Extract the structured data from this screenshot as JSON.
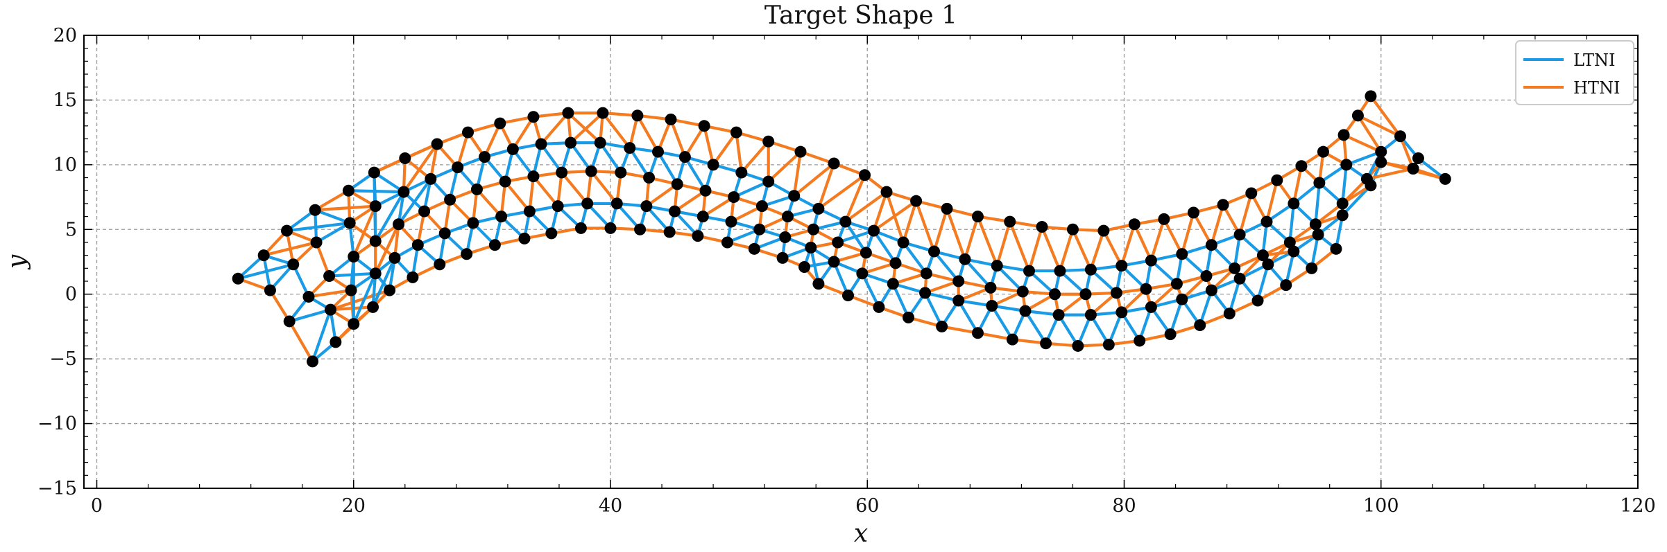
{
  "chart_data": {
    "type": "line",
    "title": "Target Shape 1",
    "xlabel": "x",
    "ylabel": "y",
    "xlim": [
      -1,
      120
    ],
    "ylim": [
      -15,
      20
    ],
    "xticks": [
      0,
      20,
      40,
      60,
      80,
      100,
      120
    ],
    "yticks": [
      -15,
      -10,
      -5,
      0,
      5,
      10,
      15,
      20
    ],
    "grid": true,
    "legend_position": "top-right",
    "colors": {
      "LTNI": "#1a9be6",
      "HTNI": "#f47b20",
      "node": "#000000"
    },
    "series": [
      {
        "name": "LTNI",
        "color": "#1a9be6"
      },
      {
        "name": "HTNI",
        "color": "#f47b20"
      }
    ],
    "rows": [
      {
        "name": "row-1",
        "points": [
          [
            11.0,
            1.2
          ],
          [
            13.5,
            0.3
          ],
          [
            15.0,
            -2.1
          ],
          [
            16.8,
            -5.2
          ]
        ]
      },
      {
        "name": "row-2",
        "points": [
          [
            13.0,
            3.0
          ],
          [
            15.3,
            2.3
          ],
          [
            16.5,
            -0.2
          ],
          [
            18.2,
            -1.2
          ],
          [
            18.6,
            -3.7
          ]
        ]
      },
      {
        "name": "row-3",
        "points": [
          [
            14.8,
            4.9
          ],
          [
            17.1,
            4.0
          ],
          [
            18.1,
            1.4
          ],
          [
            19.8,
            0.3
          ],
          [
            20.0,
            -2.3
          ],
          [
            21.5,
            -1.0
          ],
          [
            22.8,
            0.3
          ],
          [
            24.6,
            1.3
          ],
          [
            26.7,
            2.3
          ],
          [
            28.8,
            3.1
          ],
          [
            31.0,
            3.8
          ],
          [
            33.3,
            4.3
          ],
          [
            35.4,
            4.7
          ],
          [
            37.7,
            5.1
          ],
          [
            40.0,
            5.1
          ],
          [
            42.3,
            5.0
          ],
          [
            44.6,
            4.8
          ],
          [
            46.8,
            4.5
          ],
          [
            49.1,
            4.0
          ],
          [
            51.2,
            3.5
          ],
          [
            53.4,
            2.8
          ],
          [
            55.1,
            2.1
          ],
          [
            56.2,
            0.8
          ],
          [
            58.5,
            -0.1
          ],
          [
            60.9,
            -1.0
          ],
          [
            63.2,
            -1.8
          ],
          [
            65.8,
            -2.5
          ],
          [
            68.6,
            -3.0
          ],
          [
            71.3,
            -3.5
          ],
          [
            73.9,
            -3.8
          ],
          [
            76.4,
            -4.0
          ],
          [
            78.8,
            -3.9
          ],
          [
            81.2,
            -3.6
          ],
          [
            83.6,
            -3.1
          ],
          [
            85.9,
            -2.4
          ],
          [
            88.2,
            -1.5
          ],
          [
            90.4,
            -0.5
          ],
          [
            92.6,
            0.7
          ],
          [
            94.6,
            2.0
          ],
          [
            96.5,
            3.5
          ]
        ]
      },
      {
        "name": "row-4",
        "points": [
          [
            17.0,
            6.5
          ],
          [
            19.7,
            5.5
          ],
          [
            20.0,
            2.9
          ],
          [
            21.7,
            1.6
          ],
          [
            23.2,
            2.8
          ],
          [
            25.0,
            3.8
          ],
          [
            27.1,
            4.7
          ],
          [
            29.3,
            5.5
          ],
          [
            31.5,
            6.0
          ],
          [
            33.7,
            6.4
          ],
          [
            35.9,
            6.8
          ],
          [
            38.2,
            7.0
          ],
          [
            40.5,
            7.0
          ],
          [
            42.8,
            6.8
          ],
          [
            45.0,
            6.4
          ],
          [
            47.2,
            6.0
          ],
          [
            49.4,
            5.6
          ],
          [
            51.6,
            5.0
          ],
          [
            53.6,
            4.4
          ],
          [
            55.6,
            3.6
          ],
          [
            57.4,
            2.5
          ],
          [
            59.6,
            1.6
          ],
          [
            62.0,
            0.8
          ],
          [
            64.5,
            0.1
          ],
          [
            67.1,
            -0.5
          ],
          [
            69.7,
            -0.9
          ],
          [
            72.3,
            -1.3
          ],
          [
            74.9,
            -1.6
          ],
          [
            77.4,
            -1.6
          ],
          [
            79.8,
            -1.4
          ],
          [
            82.1,
            -1.0
          ],
          [
            84.5,
            -0.4
          ],
          [
            86.8,
            0.3
          ],
          [
            89.0,
            1.2
          ],
          [
            91.2,
            2.3
          ],
          [
            93.2,
            3.3
          ],
          [
            95.1,
            4.6
          ],
          [
            97.0,
            6.1
          ],
          [
            99.2,
            8.4
          ],
          [
            100.0,
            10.2
          ]
        ]
      },
      {
        "name": "row-5",
        "points": [
          [
            19.6,
            8.0
          ],
          [
            21.7,
            6.8
          ],
          [
            21.7,
            4.1
          ],
          [
            23.5,
            5.4
          ],
          [
            25.5,
            6.4
          ],
          [
            27.5,
            7.3
          ],
          [
            29.6,
            8.1
          ],
          [
            31.8,
            8.7
          ],
          [
            34.0,
            9.1
          ],
          [
            36.2,
            9.4
          ],
          [
            38.5,
            9.5
          ],
          [
            40.8,
            9.4
          ],
          [
            43.0,
            9.0
          ],
          [
            45.2,
            8.5
          ],
          [
            47.4,
            8.0
          ],
          [
            49.6,
            7.5
          ],
          [
            51.8,
            6.8
          ],
          [
            53.8,
            6.0
          ],
          [
            55.8,
            5.0
          ],
          [
            57.7,
            4.0
          ],
          [
            59.9,
            3.2
          ],
          [
            62.2,
            2.4
          ],
          [
            64.6,
            1.6
          ],
          [
            67.1,
            1.0
          ],
          [
            69.6,
            0.5
          ],
          [
            72.1,
            0.2
          ],
          [
            74.6,
            0.0
          ],
          [
            77.0,
            0.0
          ],
          [
            79.4,
            0.1
          ],
          [
            81.7,
            0.4
          ],
          [
            84.1,
            0.8
          ],
          [
            86.4,
            1.4
          ],
          [
            88.6,
            2.0
          ],
          [
            90.8,
            3.0
          ],
          [
            92.9,
            4.0
          ],
          [
            94.9,
            5.4
          ],
          [
            97.0,
            7.0
          ],
          [
            98.9,
            8.9
          ],
          [
            102.5,
            9.7
          ],
          [
            105.0,
            8.9
          ]
        ]
      },
      {
        "name": "row-6",
        "points": [
          [
            21.6,
            9.4
          ],
          [
            23.9,
            7.9
          ],
          [
            26.0,
            8.9
          ],
          [
            28.1,
            9.8
          ],
          [
            30.2,
            10.6
          ],
          [
            32.4,
            11.2
          ],
          [
            34.6,
            11.6
          ],
          [
            36.9,
            11.7
          ],
          [
            39.2,
            11.7
          ],
          [
            41.5,
            11.3
          ],
          [
            43.7,
            11.0
          ],
          [
            45.8,
            10.6
          ],
          [
            48.0,
            10.0
          ],
          [
            50.2,
            9.4
          ],
          [
            52.3,
            8.7
          ],
          [
            54.3,
            7.6
          ],
          [
            56.2,
            6.6
          ],
          [
            58.3,
            5.6
          ],
          [
            60.5,
            4.9
          ],
          [
            62.8,
            4.0
          ],
          [
            65.2,
            3.3
          ],
          [
            67.6,
            2.7
          ],
          [
            70.1,
            2.2
          ],
          [
            72.6,
            1.8
          ],
          [
            75.0,
            1.8
          ],
          [
            77.4,
            1.9
          ],
          [
            79.8,
            2.2
          ],
          [
            82.1,
            2.6
          ],
          [
            84.5,
            3.1
          ],
          [
            86.8,
            3.8
          ],
          [
            89.0,
            4.6
          ],
          [
            91.1,
            5.6
          ],
          [
            93.2,
            7.0
          ],
          [
            95.2,
            8.6
          ],
          [
            97.3,
            10.0
          ],
          [
            100.0,
            11.0
          ],
          [
            101.5,
            12.2
          ],
          [
            102.9,
            10.5
          ],
          [
            102.5,
            9.7
          ]
        ]
      },
      {
        "name": "row-7",
        "points": [
          [
            24.0,
            10.5
          ],
          [
            26.5,
            11.6
          ],
          [
            28.9,
            12.5
          ],
          [
            31.4,
            13.2
          ],
          [
            34.0,
            13.7
          ],
          [
            36.7,
            14.0
          ],
          [
            39.4,
            14.0
          ],
          [
            42.1,
            13.8
          ],
          [
            44.7,
            13.5
          ],
          [
            47.3,
            13.0
          ],
          [
            49.8,
            12.5
          ],
          [
            52.3,
            11.8
          ],
          [
            54.8,
            11.0
          ],
          [
            57.4,
            10.1
          ],
          [
            59.8,
            9.2
          ],
          [
            61.5,
            7.9
          ],
          [
            63.8,
            7.2
          ],
          [
            66.2,
            6.6
          ],
          [
            68.6,
            6.0
          ],
          [
            71.1,
            5.6
          ],
          [
            73.6,
            5.2
          ],
          [
            76.0,
            5.0
          ],
          [
            78.4,
            4.9
          ],
          [
            80.8,
            5.4
          ],
          [
            83.1,
            5.8
          ],
          [
            85.4,
            6.3
          ],
          [
            87.7,
            6.9
          ],
          [
            89.9,
            7.8
          ],
          [
            91.9,
            8.8
          ],
          [
            93.8,
            9.9
          ],
          [
            95.5,
            11.0
          ],
          [
            97.1,
            12.3
          ],
          [
            98.2,
            13.8
          ],
          [
            99.2,
            15.3
          ]
        ]
      }
    ]
  }
}
